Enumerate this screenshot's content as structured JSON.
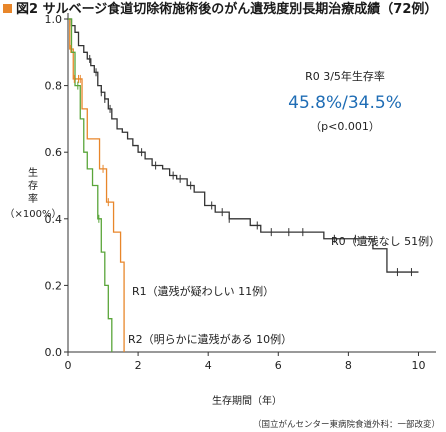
{
  "figure": {
    "title": "図2 サルベージ食道切除術施術後のがん遺残度別長期治療成績（72例）",
    "title_marker_color": "#e8862a",
    "source_note": "（国立がんセンター東病院食道外科：一部改変）"
  },
  "chart_data": {
    "type": "line",
    "title": "図2 サルベージ食道切除術施術後のがん遺残度別長期治療成績（72例）",
    "xlabel": "生存期間（年）",
    "ylabel_lines": [
      "生",
      "存",
      "率",
      "（×100%）"
    ],
    "xlim": [
      0,
      10.5
    ],
    "ylim": [
      0,
      1.0
    ],
    "x_ticks": [
      0,
      2,
      4,
      6,
      8,
      10
    ],
    "y_ticks": [
      0.0,
      0.2,
      0.4,
      0.6,
      0.8,
      1.0
    ],
    "y_tick_labels": [
      "0.0",
      "0.2",
      "0.4",
      "0.6",
      "0.8",
      "1.0"
    ],
    "grid": false,
    "annotation": {
      "title": "R0 3/5年生存率",
      "value": "45.8%/34.5%",
      "pvalue": "（p<0.001）",
      "value_color": "#1f6db5"
    },
    "series": [
      {
        "name": "R0（遺残なし 51例）",
        "color": "#333333",
        "x": [
          0,
          0.1,
          0.2,
          0.3,
          0.45,
          0.55,
          0.65,
          0.75,
          0.85,
          0.95,
          1.05,
          1.15,
          1.25,
          1.4,
          1.55,
          1.7,
          1.85,
          2.0,
          2.2,
          2.4,
          2.7,
          2.9,
          3.1,
          3.4,
          3.6,
          3.9,
          4.2,
          4.6,
          5.2,
          5.5,
          7.3,
          8.7,
          9.1,
          10.0
        ],
        "y": [
          1.0,
          0.98,
          0.96,
          0.92,
          0.9,
          0.88,
          0.86,
          0.84,
          0.8,
          0.78,
          0.76,
          0.73,
          0.7,
          0.67,
          0.66,
          0.64,
          0.62,
          0.6,
          0.58,
          0.56,
          0.55,
          0.53,
          0.52,
          0.5,
          0.48,
          0.44,
          0.42,
          0.4,
          0.38,
          0.36,
          0.34,
          0.31,
          0.24,
          0.24
        ],
        "censor_x": [
          0.62,
          0.8,
          0.95,
          1.05,
          1.2,
          2.1,
          2.5,
          3.0,
          3.2,
          3.5,
          4.1,
          4.4,
          4.6,
          5.4,
          5.8,
          6.3,
          6.7,
          7.6,
          8.2,
          9.4,
          9.8
        ]
      },
      {
        "name": "R1（遺残が疑わしい 11例）",
        "color": "#e8862a",
        "x": [
          0,
          0.05,
          0.15,
          0.4,
          0.55,
          0.9,
          1.1,
          1.3,
          1.5,
          1.6
        ],
        "y": [
          1.0,
          0.91,
          0.82,
          0.73,
          0.64,
          0.55,
          0.45,
          0.36,
          0.27,
          0.0
        ],
        "censor_x": [
          0.08,
          0.18,
          0.3,
          0.35,
          1.0,
          1.15
        ]
      },
      {
        "name": "R2（明らかに遺残がある 10例）",
        "color": "#5aa53a",
        "x": [
          0,
          0.1,
          0.2,
          0.35,
          0.45,
          0.55,
          0.7,
          0.85,
          0.95,
          1.05,
          1.15,
          1.25
        ],
        "y": [
          1.0,
          0.9,
          0.8,
          0.7,
          0.6,
          0.55,
          0.5,
          0.4,
          0.3,
          0.2,
          0.1,
          0.0
        ],
        "censor_x": [
          0.28,
          0.88
        ]
      }
    ]
  }
}
